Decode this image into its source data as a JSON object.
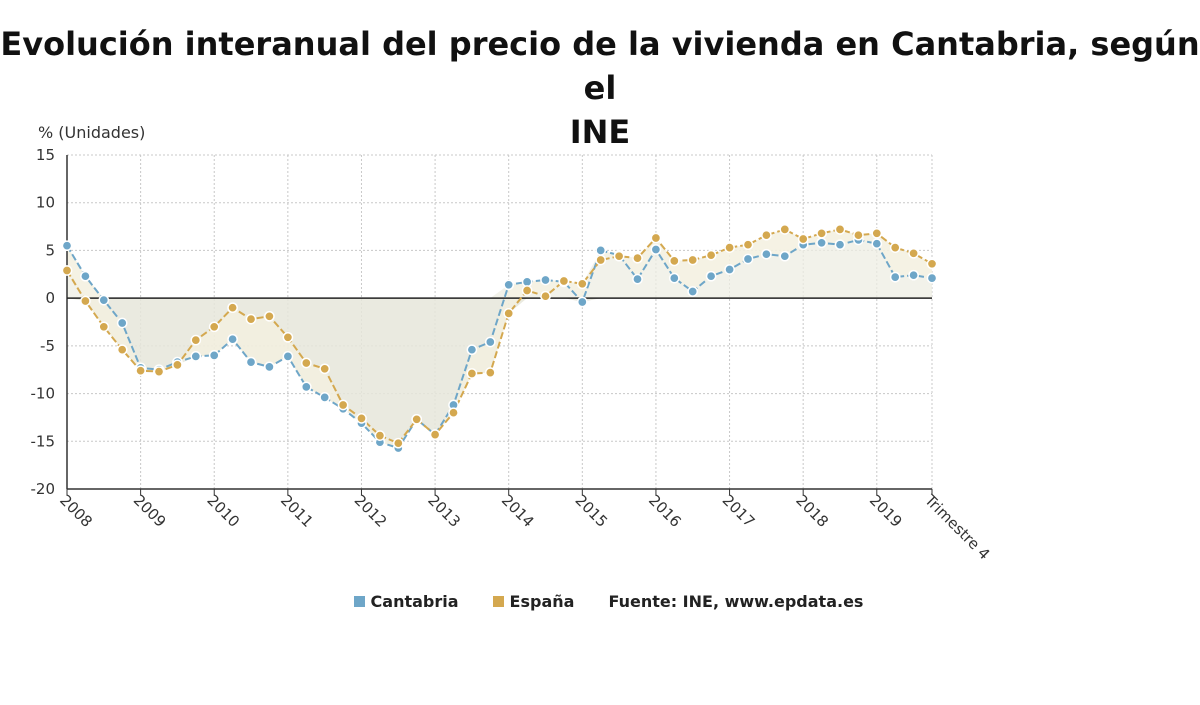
{
  "title_line1": "Evolución interanual del precio de la vivienda en Cantabria, según el",
  "title_line2": "INE",
  "chart_data": {
    "type": "line",
    "title": "Evolución interanual del precio de la vivienda en Cantabria, según el INE",
    "ylabel": "% (Unidades)",
    "xlabel": "",
    "ylim": [
      -20,
      15
    ],
    "yticks": [
      15,
      10,
      5,
      0,
      -5,
      -10,
      -15,
      -20
    ],
    "grid": true,
    "legend_position": "bottom",
    "xtick_labels": [
      "2008",
      "2009",
      "2010",
      "2011",
      "2012",
      "2013",
      "2014",
      "2015",
      "2016",
      "2017",
      "2018",
      "2019",
      "Trimestre 4"
    ],
    "x": [
      "2008-T1",
      "2008-T2",
      "2008-T3",
      "2008-T4",
      "2009-T1",
      "2009-T2",
      "2009-T3",
      "2009-T4",
      "2010-T1",
      "2010-T2",
      "2010-T3",
      "2010-T4",
      "2011-T1",
      "2011-T2",
      "2011-T3",
      "2011-T4",
      "2012-T1",
      "2012-T2",
      "2012-T3",
      "2012-T4",
      "2013-T1",
      "2013-T2",
      "2013-T3",
      "2013-T4",
      "2014-T1",
      "2014-T2",
      "2014-T3",
      "2014-T4",
      "2015-T1",
      "2015-T2",
      "2015-T3",
      "2015-T4",
      "2016-T1",
      "2016-T2",
      "2016-T3",
      "2016-T4",
      "2017-T1",
      "2017-T2",
      "2017-T3",
      "2017-T4",
      "2018-T1",
      "2018-T2",
      "2018-T3",
      "2018-T4",
      "2019-T1",
      "2019-T2",
      "2019-T3",
      "2019-T4"
    ],
    "series": [
      {
        "name": "Cantabria",
        "color": "#6ea6c8",
        "values": [
          5.5,
          2.3,
          -0.2,
          -2.6,
          -7.3,
          -7.5,
          -6.7,
          -6.1,
          -6.0,
          -4.3,
          -6.7,
          -7.2,
          -6.1,
          -9.3,
          -10.4,
          -11.6,
          -13.1,
          -15.1,
          -15.7,
          -12.7,
          -14.3,
          -11.2,
          -5.4,
          -4.6,
          1.4,
          1.7,
          1.9,
          1.7,
          -0.4,
          5.0,
          4.5,
          2.0,
          5.1,
          2.1,
          0.7,
          2.3,
          3.0,
          4.1,
          4.6,
          4.4,
          5.6,
          5.8,
          5.6,
          6.1,
          5.7,
          2.2,
          2.4,
          2.1
        ]
      },
      {
        "name": "España",
        "color": "#d4a84f",
        "values": [
          2.9,
          -0.3,
          -3.0,
          -5.4,
          -7.6,
          -7.7,
          -7.0,
          -4.4,
          -3.0,
          -1.0,
          -2.2,
          -1.9,
          -4.1,
          -6.8,
          -7.4,
          -11.2,
          -12.6,
          -14.4,
          -15.2,
          -12.7,
          -14.3,
          -12.0,
          -7.9,
          -7.8,
          -1.6,
          0.8,
          0.2,
          1.8,
          1.5,
          4.0,
          4.4,
          4.2,
          6.3,
          3.9,
          4.0,
          4.5,
          5.3,
          5.6,
          6.6,
          7.2,
          6.2,
          6.8,
          7.2,
          6.6,
          6.8,
          5.3,
          4.7,
          3.6
        ]
      }
    ],
    "source": "Fuente: INE, www.epdata.es"
  },
  "legend": {
    "cantabria": "Cantabria",
    "espana": "España",
    "source": "Fuente: INE, www.epdata.es"
  }
}
